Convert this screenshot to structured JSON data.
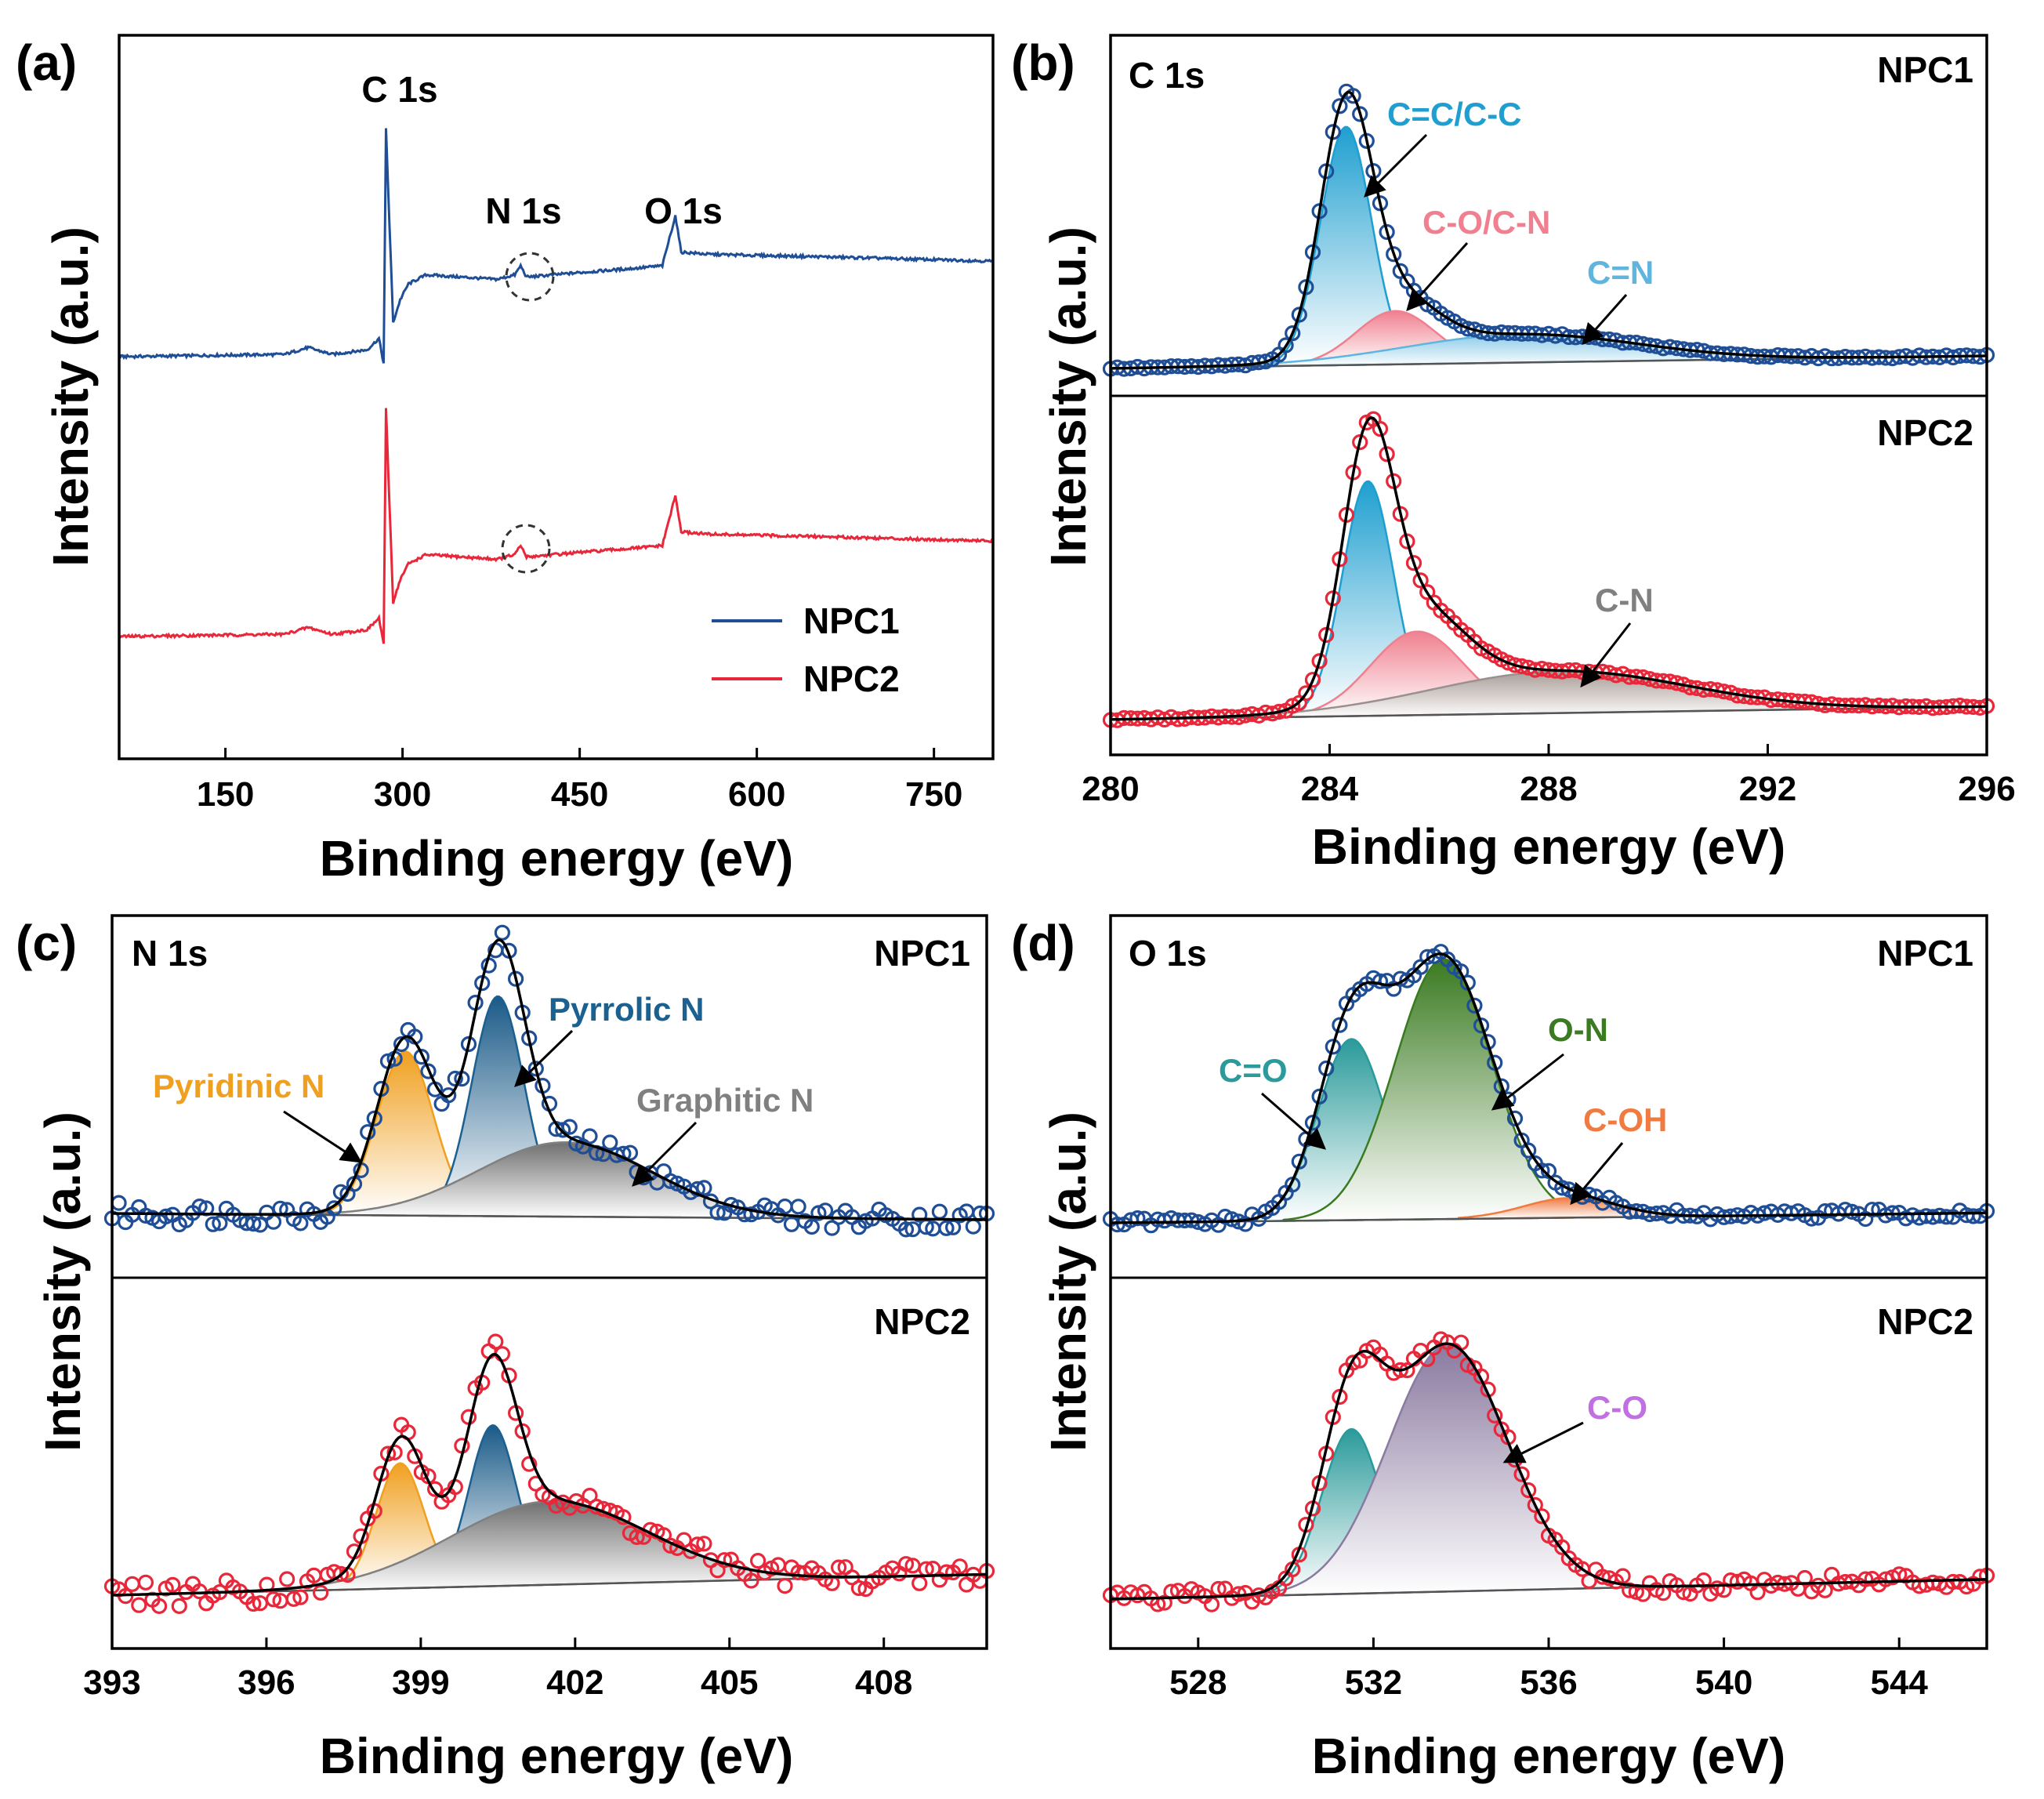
{
  "colors": {
    "npc1": "#1f4e96",
    "npc2": "#e8283a",
    "fit": "#000000",
    "c_cc": "#1f9fd0",
    "c_co": "#f08090",
    "c_cn": "#5fb5dd",
    "c_cn2": "#9a9090",
    "pyridinic": "#f0a020",
    "pyrrolic": "#1a6090",
    "graphitic": "#808080",
    "c_eq_o": "#2a9a9a",
    "o_n": "#3a7a20",
    "c_oh": "#f07a40",
    "c_o_violet": "#8a7aa0",
    "c_o_label": "#c070e0"
  },
  "x_title": "Binding energy (eV)",
  "y_title": "Intensity (a.u.)",
  "chart_data": [
    {
      "id": "a",
      "panel_label": "(a)",
      "type": "line",
      "title": "",
      "xlabel": "Binding energy (eV)",
      "ylabel": "Intensity (a.u.)",
      "xlim": [
        60,
        800
      ],
      "xticks": [
        150,
        300,
        450,
        600,
        750
      ],
      "series": [
        {
          "name": "NPC1",
          "offset": 0.5,
          "points": [
            [
              60,
              0
            ],
            [
              200,
              0.01
            ],
            [
              220,
              0.04
            ],
            [
              240,
              0.01
            ],
            [
              270,
              0.03
            ],
            [
              280,
              0.08
            ],
            [
              284,
              -0.03
            ],
            [
              286,
              1.0
            ],
            [
              292,
              0.15
            ],
            [
              298,
              0.25
            ],
            [
              305,
              0.32
            ],
            [
              320,
              0.36
            ],
            [
              380,
              0.34
            ],
            [
              395,
              0.36
            ],
            [
              400,
              0.4
            ],
            [
              405,
              0.35
            ],
            [
              450,
              0.37
            ],
            [
              500,
              0.39
            ],
            [
              520,
              0.4
            ],
            [
              531,
              0.62
            ],
            [
              536,
              0.46
            ],
            [
              560,
              0.45
            ],
            [
              650,
              0.44
            ],
            [
              800,
              0.42
            ]
          ]
        },
        {
          "name": "NPC2",
          "offset": 0.0,
          "points": [
            [
              60,
              0
            ],
            [
              200,
              0.01
            ],
            [
              220,
              0.04
            ],
            [
              240,
              0.01
            ],
            [
              270,
              0.03
            ],
            [
              280,
              0.08
            ],
            [
              284,
              -0.03
            ],
            [
              286,
              1.0
            ],
            [
              292,
              0.15
            ],
            [
              298,
              0.25
            ],
            [
              305,
              0.32
            ],
            [
              320,
              0.36
            ],
            [
              380,
              0.34
            ],
            [
              395,
              0.36
            ],
            [
              400,
              0.4
            ],
            [
              405,
              0.35
            ],
            [
              450,
              0.37
            ],
            [
              500,
              0.39
            ],
            [
              520,
              0.4
            ],
            [
              531,
              0.62
            ],
            [
              536,
              0.46
            ],
            [
              560,
              0.45
            ],
            [
              650,
              0.44
            ],
            [
              800,
              0.42
            ]
          ]
        }
      ],
      "legend": [
        "NPC1",
        "NPC2"
      ],
      "legend_position": "bottom-right",
      "annotations": [
        "C 1s",
        "N 1s",
        "O 1s"
      ]
    },
    {
      "id": "b",
      "panel_label": "(b)",
      "type": "area",
      "element": "C 1s",
      "xlabel": "Binding energy (eV)",
      "ylabel": "Intensity (a.u.)",
      "xlim": [
        280,
        296
      ],
      "xticks": [
        280,
        284,
        288,
        292,
        296
      ],
      "subplots": [
        {
          "sample": "NPC1",
          "components": [
            {
              "label": "C=C/C-C",
              "center": 284.3,
              "fwhm": 1.1,
              "height": 0.76
            },
            {
              "label": "C-O/C-N",
              "center": 285.2,
              "fwhm": 1.7,
              "height": 0.17
            },
            {
              "label": "C=N",
              "center": 287.5,
              "fwhm": 5.0,
              "height": 0.09
            }
          ]
        },
        {
          "sample": "NPC2",
          "components": [
            {
              "label": "",
              "center": 284.7,
              "fwhm": 1.1,
              "height": 0.73
            },
            {
              "label": "",
              "center": 285.6,
              "fwhm": 2.0,
              "height": 0.26
            },
            {
              "label": "C-N",
              "center": 288.2,
              "fwhm": 5.5,
              "height": 0.13
            }
          ]
        }
      ]
    },
    {
      "id": "c",
      "panel_label": "(c)",
      "type": "area",
      "element": "N 1s",
      "xlabel": "Binding energy (eV)",
      "ylabel": "Intensity (a.u.)",
      "xlim": [
        393,
        410
      ],
      "xticks": [
        393,
        396,
        399,
        402,
        405,
        408
      ],
      "subplots": [
        {
          "sample": "NPC1",
          "components": [
            {
              "label": "Pyridinic N",
              "center": 398.7,
              "fwhm": 1.3,
              "height": 0.53
            },
            {
              "label": "Pyrrolic N",
              "center": 400.5,
              "fwhm": 1.2,
              "height": 0.71
            },
            {
              "label": "Graphitic N",
              "center": 401.8,
              "fwhm": 4.0,
              "height": 0.24
            }
          ]
        },
        {
          "sample": "NPC2",
          "components": [
            {
              "label": "",
              "center": 398.6,
              "fwhm": 1.1,
              "height": 0.42
            },
            {
              "label": "",
              "center": 400.4,
              "fwhm": 1.1,
              "height": 0.54
            },
            {
              "label": "",
              "center": 401.5,
              "fwhm": 4.5,
              "height": 0.28
            }
          ]
        }
      ]
    },
    {
      "id": "d",
      "panel_label": "(d)",
      "type": "area",
      "element": "O 1s",
      "xlabel": "Binding energy (eV)",
      "ylabel": "Intensity (a.u.)",
      "xlim": [
        526,
        546
      ],
      "xticks": [
        528,
        532,
        536,
        540,
        544
      ],
      "subplots": [
        {
          "sample": "NPC1",
          "components": [
            {
              "label": "C=O",
              "center": 531.5,
              "fwhm": 1.8,
              "height": 0.55
            },
            {
              "label": "O-N",
              "center": 533.6,
              "fwhm": 2.6,
              "height": 0.79
            },
            {
              "label": "C-OH",
              "center": 536.5,
              "fwhm": 2.5,
              "height": 0.06
            }
          ]
        },
        {
          "sample": "NPC2",
          "components": [
            {
              "label": "",
              "center": 531.5,
              "fwhm": 1.6,
              "height": 0.5
            },
            {
              "label": "C-O",
              "center": 533.7,
              "fwhm": 3.2,
              "height": 0.75
            }
          ]
        }
      ]
    }
  ]
}
